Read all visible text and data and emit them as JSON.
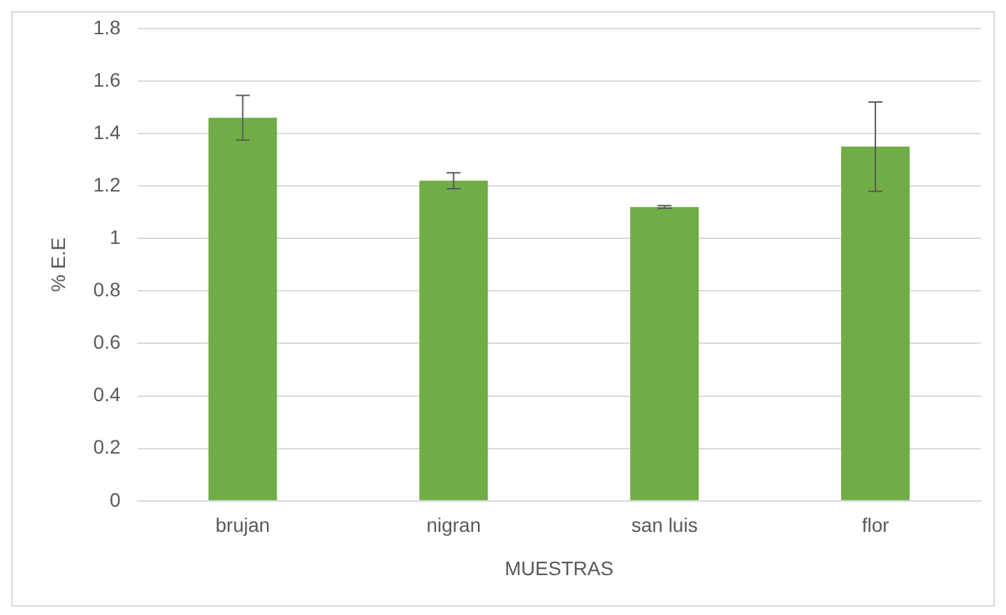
{
  "chart_data": {
    "type": "bar",
    "xlabel": "MUESTRAS",
    "ylabel": "% E.E",
    "categories": [
      "brujan",
      "nigran",
      "san luis",
      "flor"
    ],
    "values": [
      1.46,
      1.22,
      1.12,
      1.35
    ],
    "errors": [
      0.085,
      0.03,
      0.005,
      0.17
    ],
    "color": "#70ad47",
    "ylim": [
      0,
      1.8
    ],
    "yticks": [
      0,
      0.2,
      0.4,
      0.6,
      0.8,
      1,
      1.2,
      1.4,
      1.6,
      1.8
    ],
    "grid": "y",
    "legend": false
  }
}
